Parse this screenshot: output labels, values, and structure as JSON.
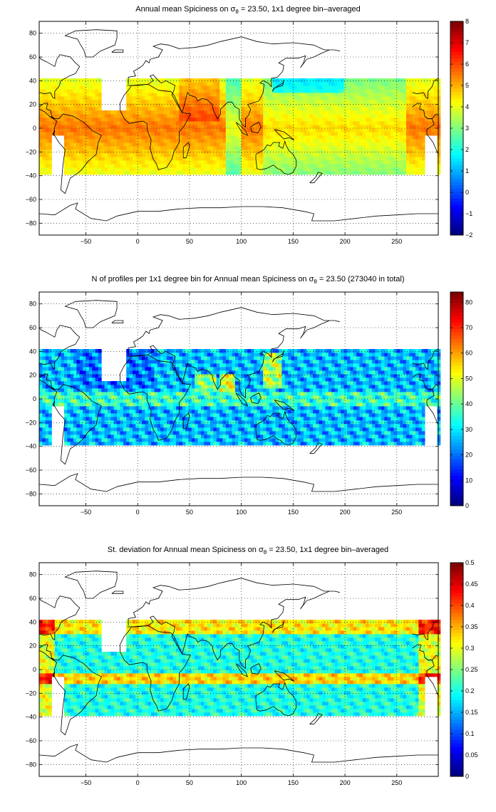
{
  "chart_data": [
    {
      "type": "heatmap",
      "title_prefix": "Annual mean Spiciness on ",
      "title_symbol": "σ",
      "title_sub": "θ",
      "title_suffix": " = 23.50, 1x1 degree bin–averaged",
      "xlim": [
        -95,
        290
      ],
      "ylim": [
        -90,
        90
      ],
      "xticks": [
        -50,
        0,
        50,
        100,
        150,
        200,
        250
      ],
      "yticks": [
        -80,
        -60,
        -40,
        -20,
        0,
        20,
        40,
        60,
        80
      ],
      "grid": true,
      "colormap": "jet",
      "clim": [
        -2,
        8
      ],
      "colorbar_ticks": [
        -2,
        -1,
        0,
        1,
        2,
        3,
        4,
        5,
        6,
        7,
        8
      ]
    },
    {
      "type": "heatmap",
      "title_prefix": "N of profiles per 1x1 degree bin for Annual mean Spiciness on ",
      "title_symbol": "σ",
      "title_sub": "θ",
      "title_suffix": " = 23.50 (273040 in total)",
      "xlim": [
        -95,
        290
      ],
      "ylim": [
        -90,
        90
      ],
      "xticks": [
        -50,
        0,
        50,
        100,
        150,
        200,
        250
      ],
      "yticks": [
        -80,
        -60,
        -40,
        -20,
        0,
        20,
        40,
        60,
        80
      ],
      "grid": true,
      "colormap": "jet",
      "clim": [
        0,
        84
      ],
      "colorbar_ticks": [
        0,
        10,
        20,
        30,
        40,
        50,
        60,
        70,
        80
      ]
    },
    {
      "type": "heatmap",
      "title_prefix": "St. deviation for Annual mean Spiciness on ",
      "title_symbol": "σ",
      "title_sub": "θ",
      "title_suffix": " = 23.50, 1x1 degree bin–averaged",
      "xlim": [
        -95,
        290
      ],
      "ylim": [
        -90,
        90
      ],
      "xticks": [
        -50,
        0,
        50,
        100,
        150,
        200,
        250
      ],
      "yticks": [
        -80,
        -60,
        -40,
        -20,
        0,
        20,
        40,
        60,
        80
      ],
      "grid": true,
      "colormap": "jet",
      "clim": [
        0,
        0.5
      ],
      "colorbar_ticks": [
        0,
        0.05,
        0.1,
        0.15,
        0.2,
        0.25,
        0.3,
        0.35,
        0.4,
        0.45,
        0.5
      ]
    }
  ]
}
